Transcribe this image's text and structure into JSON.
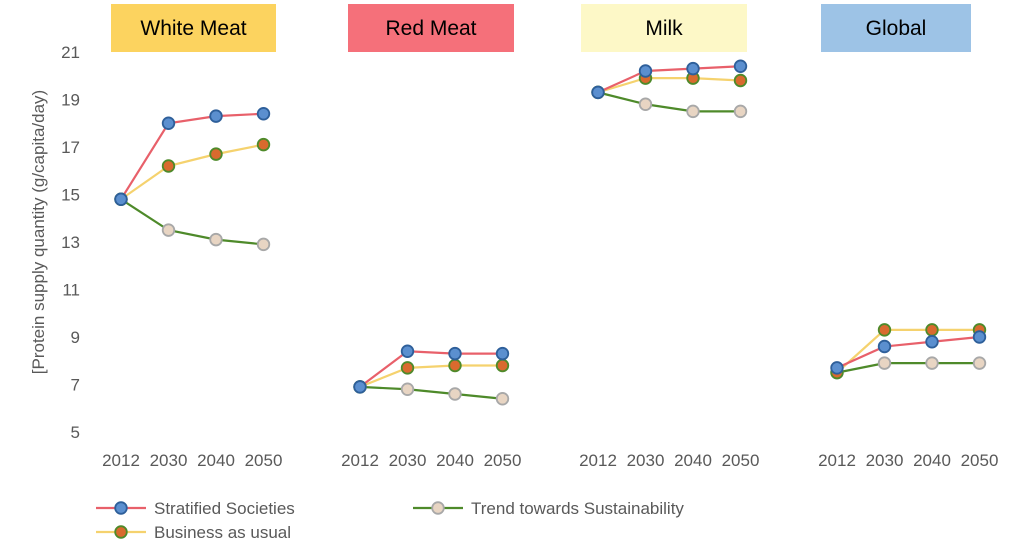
{
  "chart_data": {
    "type": "line",
    "ylabel": "[Protein supply quantity (g/capita/day)",
    "ylim": [
      5,
      21
    ],
    "yticks": [
      5,
      7,
      9,
      11,
      13,
      15,
      17,
      19,
      21
    ],
    "grid": false,
    "legend_position": "bottom",
    "categories": [
      "2012",
      "2030",
      "2040",
      "2050"
    ],
    "series_styles": [
      {
        "name": "Stratified Societies",
        "line_color": "#e8606a",
        "marker_fill": "#5b8fcf",
        "marker_stroke": "#2e5f9a"
      },
      {
        "name": "Business as usual",
        "line_color": "#f5d26e",
        "marker_fill": "#d96a2e",
        "marker_stroke": "#4e8a2a"
      },
      {
        "name": "Trend towards Sustainability",
        "line_color": "#4e8a2a",
        "marker_fill": "#e8d5c3",
        "marker_stroke": "#a8a8a8"
      }
    ],
    "panels": [
      {
        "title": "White Meat",
        "title_color": "#fcd35f",
        "series": [
          {
            "name": "Stratified Societies",
            "values": [
              14.8,
              18.0,
              18.3,
              18.4
            ]
          },
          {
            "name": "Business as usual",
            "values": [
              14.8,
              16.2,
              16.7,
              17.1
            ]
          },
          {
            "name": "Trend towards Sustainability",
            "values": [
              14.8,
              13.5,
              13.1,
              12.9
            ]
          }
        ]
      },
      {
        "title": "Red Meat",
        "title_color": "#f5707a",
        "series": [
          {
            "name": "Stratified Societies",
            "values": [
              6.9,
              8.4,
              8.3,
              8.3
            ]
          },
          {
            "name": "Business as usual",
            "values": [
              6.9,
              7.7,
              7.8,
              7.8
            ]
          },
          {
            "name": "Trend towards Sustainability",
            "values": [
              6.9,
              6.8,
              6.6,
              6.4
            ]
          }
        ]
      },
      {
        "title": "Milk",
        "title_color": "#fdf8c7",
        "series": [
          {
            "name": "Stratified Societies",
            "values": [
              19.3,
              20.2,
              20.3,
              20.4
            ]
          },
          {
            "name": "Business as usual",
            "values": [
              19.3,
              19.9,
              19.9,
              19.8
            ]
          },
          {
            "name": "Trend towards Sustainability",
            "values": [
              19.3,
              18.8,
              18.5,
              18.5
            ]
          }
        ]
      },
      {
        "title": "Global",
        "title_color": "#9dc3e6",
        "series": [
          {
            "name": "Stratified Societies",
            "values": [
              7.7,
              8.6,
              8.8,
              9.0
            ]
          },
          {
            "name": "Business as usual",
            "values": [
              7.5,
              9.3,
              9.3,
              9.3
            ]
          },
          {
            "name": "Trend towards Sustainability",
            "values": [
              7.5,
              7.9,
              7.9,
              7.9
            ]
          }
        ]
      }
    ]
  }
}
